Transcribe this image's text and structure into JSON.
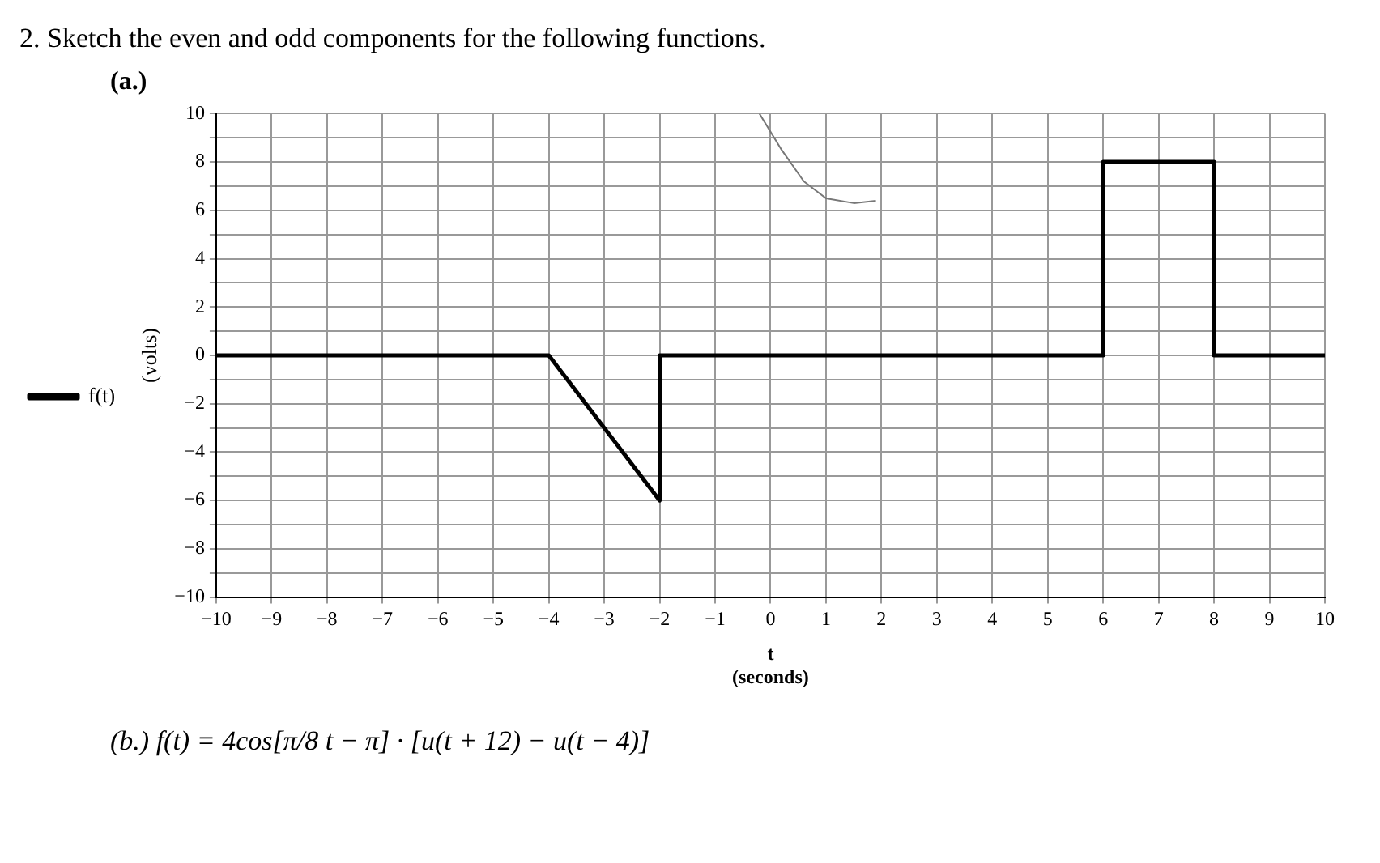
{
  "chart_data": {
    "type": "line",
    "title": "2. Sketch the even and odd components for the following functions.",
    "subtitle": "(a.)",
    "xlabel": "t\n(seconds)",
    "ylabel": "(volts)",
    "series": [
      {
        "name": "f(t)",
        "color": "#000000",
        "x": [
          -10,
          -4,
          -2,
          -2,
          6,
          6,
          8,
          8,
          10
        ],
        "values": [
          0,
          0,
          -6,
          0,
          0,
          8,
          8,
          0,
          0
        ]
      },
      {
        "color": "#777777",
        "x": [
          -0.2,
          0.2,
          0.6,
          1,
          1.5,
          1.9
        ],
        "values": [
          10,
          8.5,
          7.2,
          6.5,
          6.3,
          6.4
        ]
      }
    ],
    "xlim": [
      -10,
      10
    ],
    "xticks": [
      -10,
      -9,
      -8,
      -7,
      -6,
      -5,
      -4,
      -3,
      -2,
      -1,
      0,
      1,
      2,
      3,
      4,
      5,
      6,
      7,
      8,
      9,
      10
    ],
    "ylim": [
      -10,
      10
    ],
    "yticks": [
      -10,
      {
        "value": -9,
        "label": null
      },
      -8,
      {
        "value": -7,
        "label": null
      },
      -6,
      {
        "value": -5,
        "label": null
      },
      -4,
      {
        "value": -3,
        "label": null
      },
      -2,
      {
        "value": -1,
        "label": null
      },
      0,
      {
        "value": 1,
        "label": null
      },
      2,
      {
        "value": 3,
        "label": null
      },
      4,
      {
        "value": 5,
        "label": null
      },
      6,
      {
        "value": 7,
        "label": null
      },
      8,
      {
        "value": 9,
        "label": null
      },
      10
    ],
    "grid": true,
    "legend": "left",
    "marker": "none",
    "line_style": "solid",
    "annotations": [
      "(b.)     f(t) = 4cos[π/8 t − π] · [u(t + 12) − u(t − 4)]"
    ]
  }
}
